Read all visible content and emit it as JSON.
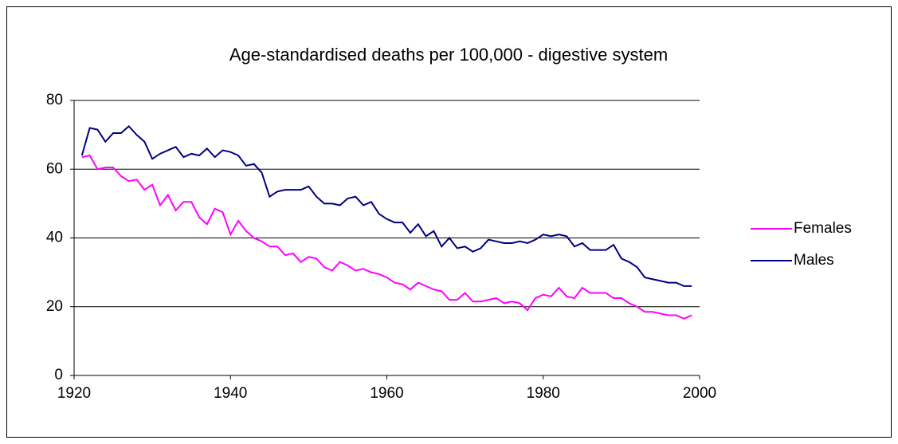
{
  "chart_data": {
    "type": "line",
    "title": "Age-standardised deaths per 100,000 - digestive system",
    "x": [
      1921,
      1922,
      1923,
      1924,
      1925,
      1926,
      1927,
      1928,
      1929,
      1930,
      1931,
      1932,
      1933,
      1934,
      1935,
      1936,
      1937,
      1938,
      1939,
      1940,
      1941,
      1942,
      1943,
      1944,
      1945,
      1946,
      1947,
      1948,
      1949,
      1950,
      1951,
      1952,
      1953,
      1954,
      1955,
      1956,
      1957,
      1958,
      1959,
      1960,
      1961,
      1962,
      1963,
      1964,
      1965,
      1966,
      1967,
      1968,
      1969,
      1970,
      1971,
      1972,
      1973,
      1974,
      1975,
      1976,
      1977,
      1978,
      1979,
      1980,
      1981,
      1982,
      1983,
      1984,
      1985,
      1986,
      1987,
      1988,
      1989,
      1990,
      1991,
      1992,
      1993,
      1994,
      1995,
      1996,
      1997,
      1998,
      1999
    ],
    "series": [
      {
        "name": "Females",
        "color": "#ff00ff",
        "values": [
          63.5,
          64,
          60,
          60.5,
          60.5,
          58,
          56.5,
          57,
          54,
          55.5,
          49.5,
          52.5,
          48,
          50.5,
          50.5,
          46,
          44,
          48.5,
          47.5,
          41,
          45,
          42,
          40,
          39,
          37.5,
          37.5,
          35,
          35.5,
          33,
          34.5,
          34,
          31.5,
          30.5,
          33,
          32,
          30.5,
          31,
          30,
          29.5,
          28.5,
          27,
          26.5,
          25,
          27,
          26,
          25,
          24.5,
          22,
          22,
          24,
          21.5,
          21.5,
          22,
          22.5,
          21,
          21.5,
          21,
          19,
          22.5,
          23.5,
          23,
          25.5,
          23,
          22.5,
          25.5,
          24,
          24,
          24,
          22.5,
          22.5,
          21,
          20,
          18.5,
          18.5,
          18,
          17.5,
          17.5,
          16.5,
          17.5
        ]
      },
      {
        "name": "Males",
        "color": "#000080",
        "values": [
          64,
          72,
          71.5,
          68,
          70.5,
          70.5,
          72.5,
          70,
          68,
          63,
          64.5,
          65.5,
          66.5,
          63.5,
          64.5,
          64,
          66,
          63.5,
          65.5,
          65,
          64,
          61,
          61.5,
          59,
          52,
          53.5,
          54,
          54,
          54,
          55,
          52,
          50,
          50,
          49.5,
          51.5,
          52,
          49.5,
          50.5,
          47,
          45.5,
          44.5,
          44.5,
          41.5,
          44,
          40.5,
          42,
          37.5,
          40,
          37,
          37.5,
          36,
          37,
          39.5,
          39,
          38.5,
          38.5,
          39,
          38.5,
          39.5,
          41,
          40.5,
          41,
          40.5,
          37.5,
          38.5,
          36.5,
          36.5,
          36.5,
          38,
          34,
          33,
          31.5,
          28.5,
          28,
          27.5,
          27,
          27,
          26,
          26
        ]
      }
    ],
    "xlim": [
      1920,
      2000
    ],
    "xticks": [
      1920,
      1940,
      1960,
      1980,
      2000
    ],
    "ylim": [
      0,
      80
    ],
    "yticks": [
      0,
      20,
      40,
      60,
      80
    ],
    "grid": true,
    "legend": "right"
  }
}
